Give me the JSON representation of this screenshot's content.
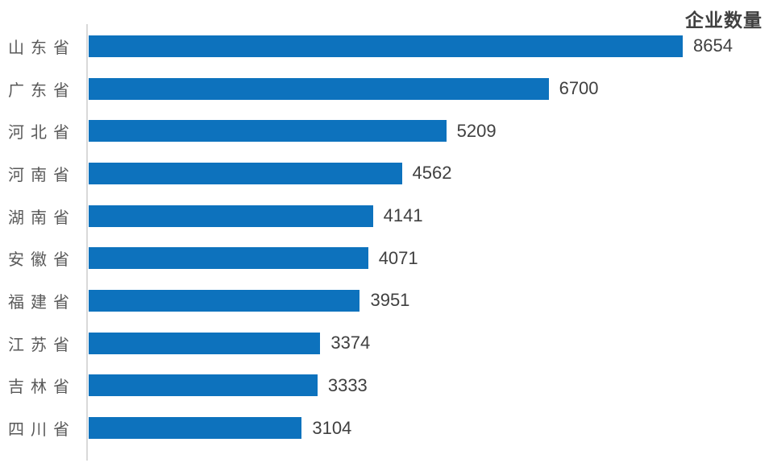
{
  "chart": {
    "title": "企业数量",
    "bar_color": "#0d72bd",
    "axis_line_color": "#d9d9d9",
    "category_label_color": "#595959",
    "value_label_color": "#404040"
  },
  "chart_data": {
    "type": "bar",
    "orientation": "horizontal",
    "title": "企业数量",
    "categories": [
      "山东省",
      "广东省",
      "河北省",
      "河南省",
      "湖南省",
      "安徽省",
      "福建省",
      "江苏省",
      "吉林省",
      "四川省"
    ],
    "values": [
      8654,
      6700,
      5209,
      4562,
      4141,
      4071,
      3951,
      3374,
      3333,
      3104
    ],
    "series": [
      {
        "name": "企业数量",
        "values": [
          8654,
          6700,
          5209,
          4562,
          4141,
          4071,
          3951,
          3374,
          3333,
          3104
        ]
      }
    ],
    "xlabel": "",
    "ylabel": "",
    "xlim": [
      0,
      10000
    ],
    "grid": false,
    "legend": "none",
    "data_labels": true,
    "sort_order": "descending",
    "bar_color": "#0d72bd"
  }
}
